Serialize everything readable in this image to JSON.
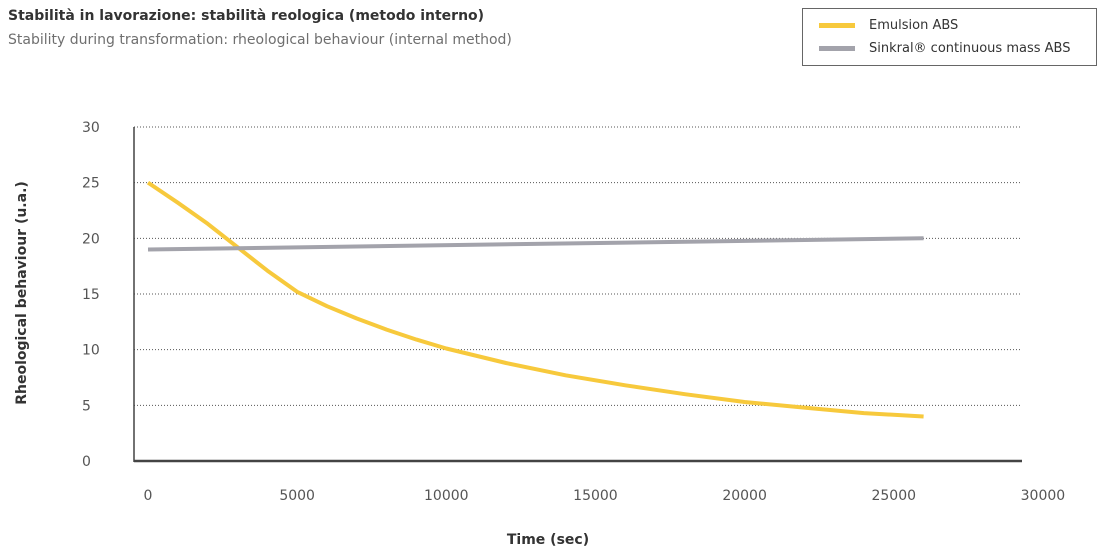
{
  "chart_data": {
    "type": "line",
    "title": "Stabilità in lavorazione: stabilità reologica (metodo interno)",
    "subtitle": "Stability during transformation: rheological behaviour (internal method)",
    "xlabel": "Time (sec)",
    "ylabel": "Rheological behaviour (u.a.)",
    "xlim": [
      0,
      31000
    ],
    "ylim": [
      0,
      30
    ],
    "xticks": [
      0,
      5000,
      10000,
      15000,
      20000,
      25000,
      30000
    ],
    "yticks": [
      0,
      5,
      10,
      15,
      20,
      25,
      30
    ],
    "x_tick_labels": [
      "0",
      "5000",
      "10000",
      "15000",
      "20000",
      "25000",
      "30000"
    ],
    "y_tick_labels": [
      "0",
      "5",
      "10",
      "15",
      "20",
      "25",
      "30"
    ],
    "grid": "horizontal dotted",
    "legend_position": "top-right",
    "series": [
      {
        "name": "Emulsion ABS",
        "color": "#f7c93c",
        "x": [
          0,
          1000,
          2000,
          3000,
          4000,
          5000,
          6000,
          7000,
          8000,
          9000,
          10000,
          12000,
          14000,
          16000,
          18000,
          20000,
          22000,
          24000,
          26000
        ],
        "y": [
          25,
          23.2,
          21.3,
          19.2,
          17.1,
          15.2,
          13.9,
          12.8,
          11.8,
          10.9,
          10.1,
          8.8,
          7.7,
          6.8,
          6.0,
          5.3,
          4.8,
          4.3,
          4.0
        ]
      },
      {
        "name": "Sinkral® continuous mass ABS",
        "color": "#a3a3ab",
        "x": [
          0,
          26000
        ],
        "y": [
          19.0,
          20.0
        ]
      }
    ]
  }
}
